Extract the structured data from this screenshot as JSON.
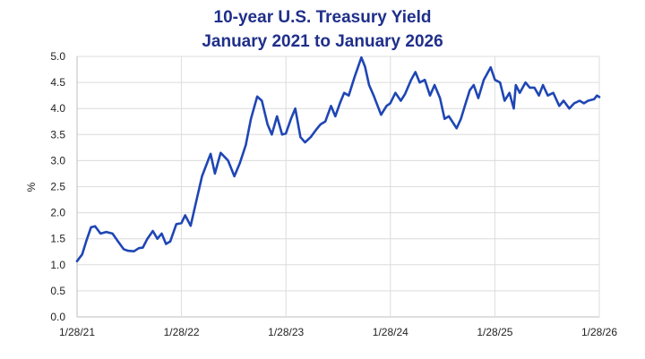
{
  "chart_data": {
    "type": "line",
    "title": [
      "10-year U.S. Treasury Yield",
      "January 2021 to January 2026"
    ],
    "xlabel": "",
    "ylabel": "%",
    "x_ticks": [
      "1/28/21",
      "1/28/22",
      "1/28/23",
      "1/28/24",
      "1/28/25",
      "1/28/26"
    ],
    "y_ticks": [
      "0.0",
      "0.5",
      "1.0",
      "1.5",
      "2.0",
      "2.5",
      "3.0",
      "3.5",
      "4.0",
      "4.5",
      "5.0"
    ],
    "xlim": [
      "2021-01-28",
      "2026-01-28"
    ],
    "ylim": [
      0,
      5
    ],
    "grid": true,
    "legend": "none",
    "line_color": "#1f46b4",
    "series": [
      {
        "values": [
          [
            "2021-01-28",
            1.07
          ],
          [
            "2021-02-15",
            1.2
          ],
          [
            "2021-03-01",
            1.45
          ],
          [
            "2021-03-18",
            1.72
          ],
          [
            "2021-04-01",
            1.74
          ],
          [
            "2021-04-20",
            1.6
          ],
          [
            "2021-05-10",
            1.63
          ],
          [
            "2021-06-01",
            1.6
          ],
          [
            "2021-06-20",
            1.45
          ],
          [
            "2021-07-10",
            1.3
          ],
          [
            "2021-07-25",
            1.27
          ],
          [
            "2021-08-15",
            1.26
          ],
          [
            "2021-09-01",
            1.32
          ],
          [
            "2021-09-15",
            1.33
          ],
          [
            "2021-10-01",
            1.5
          ],
          [
            "2021-10-20",
            1.65
          ],
          [
            "2021-11-05",
            1.5
          ],
          [
            "2021-11-20",
            1.6
          ],
          [
            "2021-12-05",
            1.4
          ],
          [
            "2021-12-20",
            1.45
          ],
          [
            "2022-01-10",
            1.78
          ],
          [
            "2022-01-28",
            1.8
          ],
          [
            "2022-02-10",
            1.95
          ],
          [
            "2022-03-01",
            1.75
          ],
          [
            "2022-03-20",
            2.2
          ],
          [
            "2022-04-10",
            2.7
          ],
          [
            "2022-05-01",
            3.0
          ],
          [
            "2022-05-10",
            3.13
          ],
          [
            "2022-05-25",
            2.75
          ],
          [
            "2022-06-14",
            3.15
          ],
          [
            "2022-07-10",
            3.0
          ],
          [
            "2022-08-01",
            2.7
          ],
          [
            "2022-08-20",
            2.95
          ],
          [
            "2022-09-10",
            3.3
          ],
          [
            "2022-09-28",
            3.8
          ],
          [
            "2022-10-20",
            4.23
          ],
          [
            "2022-11-05",
            4.15
          ],
          [
            "2022-11-25",
            3.7
          ],
          [
            "2022-12-10",
            3.5
          ],
          [
            "2022-12-28",
            3.85
          ],
          [
            "2023-01-15",
            3.5
          ],
          [
            "2023-01-28",
            3.52
          ],
          [
            "2023-02-15",
            3.8
          ],
          [
            "2023-03-02",
            4.0
          ],
          [
            "2023-03-20",
            3.45
          ],
          [
            "2023-04-05",
            3.35
          ],
          [
            "2023-04-25",
            3.45
          ],
          [
            "2023-05-15",
            3.6
          ],
          [
            "2023-05-30",
            3.7
          ],
          [
            "2023-06-15",
            3.75
          ],
          [
            "2023-07-05",
            4.05
          ],
          [
            "2023-07-20",
            3.85
          ],
          [
            "2023-08-05",
            4.1
          ],
          [
            "2023-08-20",
            4.3
          ],
          [
            "2023-09-05",
            4.25
          ],
          [
            "2023-09-25",
            4.6
          ],
          [
            "2023-10-19",
            4.98
          ],
          [
            "2023-11-01",
            4.8
          ],
          [
            "2023-11-15",
            4.45
          ],
          [
            "2023-12-01",
            4.25
          ],
          [
            "2023-12-27",
            3.88
          ],
          [
            "2024-01-15",
            4.05
          ],
          [
            "2024-01-28",
            4.1
          ],
          [
            "2024-02-15",
            4.3
          ],
          [
            "2024-03-05",
            4.15
          ],
          [
            "2024-03-20",
            4.28
          ],
          [
            "2024-04-10",
            4.55
          ],
          [
            "2024-04-25",
            4.7
          ],
          [
            "2024-05-10",
            4.5
          ],
          [
            "2024-05-28",
            4.55
          ],
          [
            "2024-06-15",
            4.25
          ],
          [
            "2024-07-01",
            4.45
          ],
          [
            "2024-07-20",
            4.2
          ],
          [
            "2024-08-05",
            3.8
          ],
          [
            "2024-08-20",
            3.85
          ],
          [
            "2024-09-16",
            3.62
          ],
          [
            "2024-10-01",
            3.8
          ],
          [
            "2024-10-15",
            4.05
          ],
          [
            "2024-11-01",
            4.35
          ],
          [
            "2024-11-15",
            4.45
          ],
          [
            "2024-12-01",
            4.2
          ],
          [
            "2024-12-20",
            4.55
          ],
          [
            "2025-01-13",
            4.79
          ],
          [
            "2025-01-28",
            4.55
          ],
          [
            "2025-02-15",
            4.5
          ],
          [
            "2025-03-03",
            4.15
          ],
          [
            "2025-03-20",
            4.3
          ],
          [
            "2025-04-04",
            4.0
          ],
          [
            "2025-04-11",
            4.45
          ],
          [
            "2025-04-25",
            4.3
          ],
          [
            "2025-05-15",
            4.5
          ],
          [
            "2025-05-30",
            4.4
          ],
          [
            "2025-06-15",
            4.4
          ],
          [
            "2025-07-01",
            4.25
          ],
          [
            "2025-07-15",
            4.45
          ],
          [
            "2025-08-01",
            4.25
          ],
          [
            "2025-08-20",
            4.3
          ],
          [
            "2025-09-10",
            4.05
          ],
          [
            "2025-09-25",
            4.15
          ],
          [
            "2025-10-15",
            4.0
          ],
          [
            "2025-11-01",
            4.1
          ],
          [
            "2025-11-20",
            4.15
          ],
          [
            "2025-12-05",
            4.1
          ],
          [
            "2025-12-20",
            4.15
          ],
          [
            "2026-01-10",
            4.18
          ],
          [
            "2026-01-20",
            4.25
          ],
          [
            "2026-01-28",
            4.22
          ]
        ]
      }
    ]
  }
}
